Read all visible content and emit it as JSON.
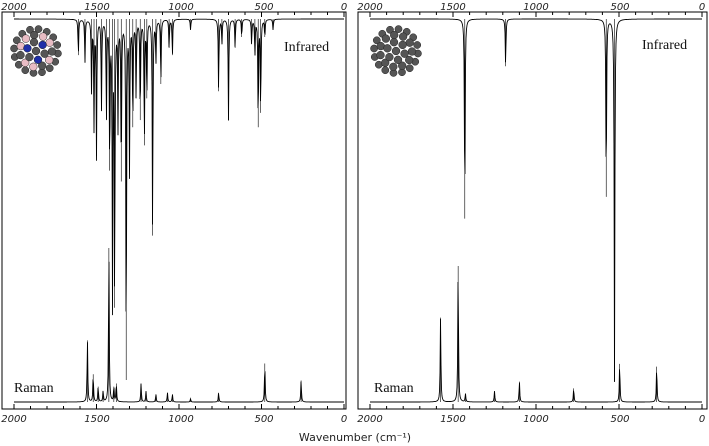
{
  "chart_data": [
    {
      "type": "line",
      "title": "",
      "xlabel": "",
      "ylabel": "",
      "xlim": [
        2000,
        0
      ],
      "x_direction": "reversed",
      "x_ticks": [
        "2000",
        "1500",
        "1000",
        "500",
        "0"
      ],
      "axis_ticks": "top and bottom",
      "grid": false,
      "series": [
        {
          "name": "Infrared",
          "orientation": "downward",
          "baseline": 1.0,
          "peaks": [
            {
              "x": 1610,
              "depth": 0.1
            },
            {
              "x": 1570,
              "depth": 0.12
            },
            {
              "x": 1530,
              "depth": 0.2
            },
            {
              "x": 1515,
              "depth": 0.3
            },
            {
              "x": 1500,
              "depth": 0.38
            },
            {
              "x": 1470,
              "depth": 0.25
            },
            {
              "x": 1440,
              "depth": 0.28
            },
            {
              "x": 1420,
              "depth": 0.42
            },
            {
              "x": 1403,
              "depth": 0.78
            },
            {
              "x": 1390,
              "depth": 0.8
            },
            {
              "x": 1370,
              "depth": 0.3
            },
            {
              "x": 1350,
              "depth": 0.45
            },
            {
              "x": 1320,
              "depth": 1.0
            },
            {
              "x": 1300,
              "depth": 0.42
            },
            {
              "x": 1280,
              "depth": 0.3
            },
            {
              "x": 1260,
              "depth": 0.22
            },
            {
              "x": 1235,
              "depth": 0.28
            },
            {
              "x": 1210,
              "depth": 0.35
            },
            {
              "x": 1195,
              "depth": 0.22
            },
            {
              "x": 1160,
              "depth": 0.6
            },
            {
              "x": 1140,
              "depth": 0.12
            },
            {
              "x": 1110,
              "depth": 0.18
            },
            {
              "x": 1060,
              "depth": 0.08
            },
            {
              "x": 1040,
              "depth": 0.1
            },
            {
              "x": 930,
              "depth": 0.03
            },
            {
              "x": 760,
              "depth": 0.2
            },
            {
              "x": 740,
              "depth": 0.07
            },
            {
              "x": 700,
              "depth": 0.28
            },
            {
              "x": 660,
              "depth": 0.08
            },
            {
              "x": 620,
              "depth": 0.05
            },
            {
              "x": 560,
              "depth": 0.07
            },
            {
              "x": 540,
              "depth": 0.1
            },
            {
              "x": 520,
              "depth": 0.3
            },
            {
              "x": 505,
              "depth": 0.26
            },
            {
              "x": 480,
              "depth": 0.05
            },
            {
              "x": 430,
              "depth": 0.03
            }
          ]
        },
        {
          "name": "Raman",
          "orientation": "upward",
          "baseline": 0.0,
          "peaks": [
            {
              "x": 1555,
              "height": 0.4
            },
            {
              "x": 1520,
              "height": 0.18
            },
            {
              "x": 1490,
              "height": 0.1
            },
            {
              "x": 1460,
              "height": 0.07
            },
            {
              "x": 1425,
              "height": 1.0
            },
            {
              "x": 1395,
              "height": 0.1
            },
            {
              "x": 1380,
              "height": 0.12
            },
            {
              "x": 1230,
              "height": 0.12
            },
            {
              "x": 1200,
              "height": 0.07
            },
            {
              "x": 1140,
              "height": 0.05
            },
            {
              "x": 1070,
              "height": 0.06
            },
            {
              "x": 1040,
              "height": 0.05
            },
            {
              "x": 930,
              "height": 0.02
            },
            {
              "x": 760,
              "height": 0.06
            },
            {
              "x": 480,
              "height": 0.25
            },
            {
              "x": 260,
              "height": 0.14
            }
          ]
        }
      ],
      "labels": {
        "infrared": "Infrared",
        "raman": "Raman"
      },
      "colors": {
        "line": "#000000",
        "molecule_carbon": "#555555",
        "molecule_boron": "#e8bcc4",
        "molecule_nitrogen": "#1f2fa8"
      }
    },
    {
      "type": "line",
      "title": "",
      "xlabel": "",
      "ylabel": "",
      "xlim": [
        2000,
        0
      ],
      "x_direction": "reversed",
      "x_ticks": [
        "2000",
        "1500",
        "1000",
        "500",
        "0"
      ],
      "axis_ticks": "top and bottom",
      "grid": false,
      "series": [
        {
          "name": "Infrared",
          "orientation": "downward",
          "baseline": 1.0,
          "peaks": [
            {
              "x": 1429,
              "depth": 0.55
            },
            {
              "x": 1183,
              "depth": 0.13
            },
            {
              "x": 577,
              "depth": 0.49
            },
            {
              "x": 527,
              "depth": 1.0
            }
          ]
        },
        {
          "name": "Raman",
          "orientation": "upward",
          "baseline": 0.0,
          "peaks": [
            {
              "x": 1575,
              "height": 0.62
            },
            {
              "x": 1469,
              "height": 1.0
            },
            {
              "x": 1425,
              "height": 0.06
            },
            {
              "x": 1250,
              "height": 0.08
            },
            {
              "x": 1100,
              "height": 0.15
            },
            {
              "x": 773,
              "height": 0.1
            },
            {
              "x": 496,
              "height": 0.28
            },
            {
              "x": 273,
              "height": 0.26
            }
          ]
        }
      ],
      "labels": {
        "infrared": "Infrared",
        "raman": "Raman"
      },
      "colors": {
        "line": "#000000",
        "molecule_carbon": "#555555"
      }
    }
  ],
  "shared_xlabel": "Wavenumber (cm⁻¹)"
}
